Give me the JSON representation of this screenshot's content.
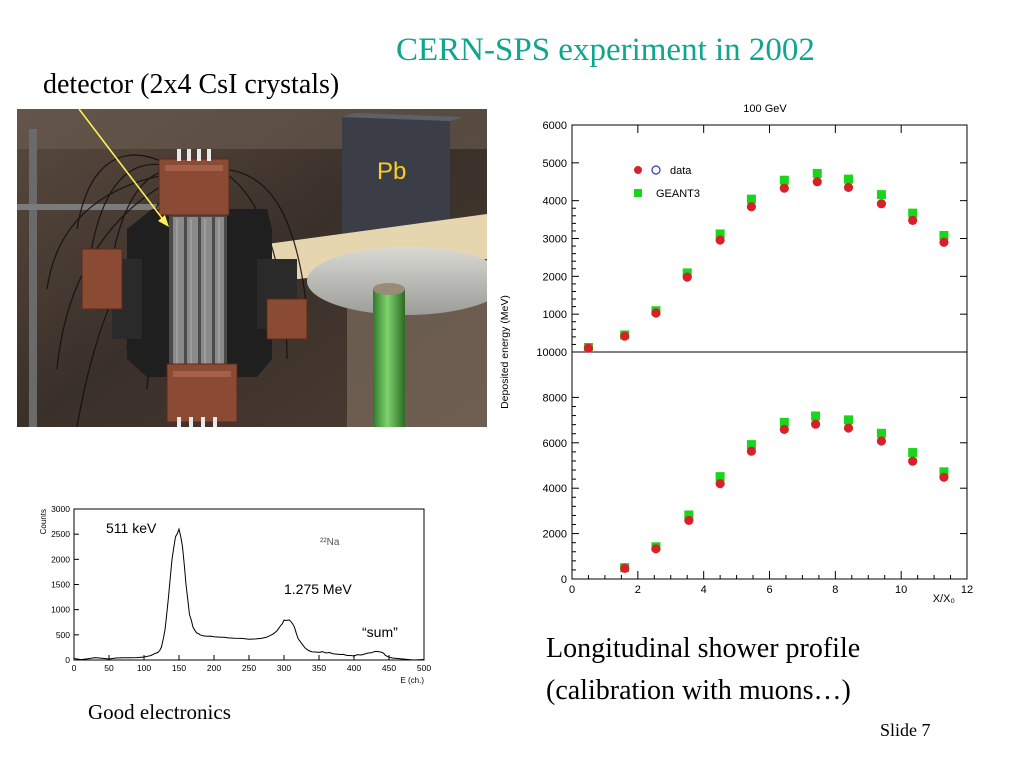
{
  "slide": {
    "title": "CERN-SPS experiment in 2002",
    "detector_label": "detector (2x4 CsI crystals)",
    "pb_label": "Pb",
    "right_caption_line1": "Longitudinal shower profile",
    "right_caption_line2": "(calibration with muons…)",
    "left_caption": "Good electronics",
    "slide_number": "Slide 7"
  },
  "colors": {
    "title": "#0fa58f",
    "data": "#d8202a",
    "geant": "#19d51b"
  },
  "chart_data": [
    {
      "type": "scatter",
      "panel": "top",
      "title": "100 GeV",
      "ylabel": "Deposited energy (MeV)",
      "xlim": [
        0,
        12
      ],
      "ylim": [
        0,
        6000
      ],
      "yticks": [
        "0",
        "1000",
        "2000",
        "3000",
        "4000",
        "5000",
        "6000"
      ],
      "legend": [
        "data",
        "GEANT3"
      ],
      "series": [
        {
          "name": "data",
          "x": [
            0.5,
            1.6,
            2.55,
            3.5,
            4.5,
            5.45,
            6.45,
            7.45,
            8.4,
            9.4,
            10.35,
            11.3
          ],
          "values": [
            100,
            420,
            1030,
            1980,
            2960,
            3840,
            4330,
            4500,
            4350,
            3920,
            3480,
            2900
          ]
        },
        {
          "name": "GEANT3",
          "x": [
            0.5,
            1.6,
            2.55,
            3.5,
            4.5,
            5.45,
            6.45,
            7.45,
            8.4,
            9.4,
            10.35,
            11.3
          ],
          "values": [
            120,
            450,
            1090,
            2090,
            3120,
            4040,
            4540,
            4720,
            4570,
            4160,
            3670,
            3080
          ]
        }
      ]
    },
    {
      "type": "scatter",
      "panel": "bottom",
      "xlabel": "X/X₀",
      "xlim": [
        0,
        12
      ],
      "ylim": [
        0,
        10000
      ],
      "xticks": [
        "0",
        "2",
        "4",
        "6",
        "8",
        "10",
        "12"
      ],
      "yticks": [
        "0",
        "2000",
        "4000",
        "6000",
        "8000",
        "10000"
      ],
      "series": [
        {
          "name": "data",
          "x": [
            1.6,
            2.55,
            3.55,
            4.5,
            5.45,
            6.45,
            7.4,
            8.4,
            9.4,
            10.35,
            11.3
          ],
          "values": [
            470,
            1330,
            2580,
            4200,
            5630,
            6590,
            6820,
            6650,
            6080,
            5190,
            4480
          ]
        },
        {
          "name": "GEANT3",
          "x": [
            1.6,
            2.55,
            3.55,
            4.5,
            5.45,
            6.45,
            7.4,
            8.4,
            9.4,
            10.35,
            11.3
          ],
          "values": [
            500,
            1420,
            2820,
            4510,
            5920,
            6900,
            7180,
            7010,
            6420,
            5570,
            4720
          ]
        }
      ]
    },
    {
      "type": "line",
      "panel": "spectrum",
      "ylabel": "Counts",
      "xlabel": "E (ch.)",
      "xlim": [
        0,
        500
      ],
      "ylim": [
        0,
        3000
      ],
      "xticks": [
        "0",
        "50",
        "100",
        "150",
        "200",
        "250",
        "300",
        "350",
        "400",
        "450",
        "500"
      ],
      "yticks": [
        "0",
        "500",
        "1000",
        "1500",
        "2000",
        "2500",
        "3000"
      ],
      "annotations": [
        "511 keV",
        "1.275 MeV",
        "“sum”",
        "²²Na"
      ],
      "x": [
        0,
        20,
        40,
        60,
        80,
        100,
        110,
        120,
        125,
        130,
        135,
        140,
        145,
        150,
        155,
        160,
        165,
        170,
        175,
        180,
        190,
        200,
        210,
        220,
        240,
        260,
        275,
        285,
        295,
        300,
        305,
        310,
        315,
        320,
        330,
        340,
        350,
        360,
        370,
        380,
        390,
        400,
        410,
        420,
        430,
        440,
        445,
        455,
        470,
        500
      ],
      "values": [
        30,
        25,
        35,
        40,
        45,
        60,
        90,
        150,
        260,
        600,
        1250,
        2000,
        2450,
        2600,
        2250,
        1500,
        900,
        650,
        540,
        500,
        470,
        460,
        450,
        440,
        430,
        420,
        450,
        520,
        680,
        790,
        790,
        760,
        650,
        430,
        240,
        160,
        150,
        140,
        125,
        110,
        90,
        80,
        100,
        140,
        170,
        150,
        90,
        40,
        20,
        10
      ]
    }
  ]
}
